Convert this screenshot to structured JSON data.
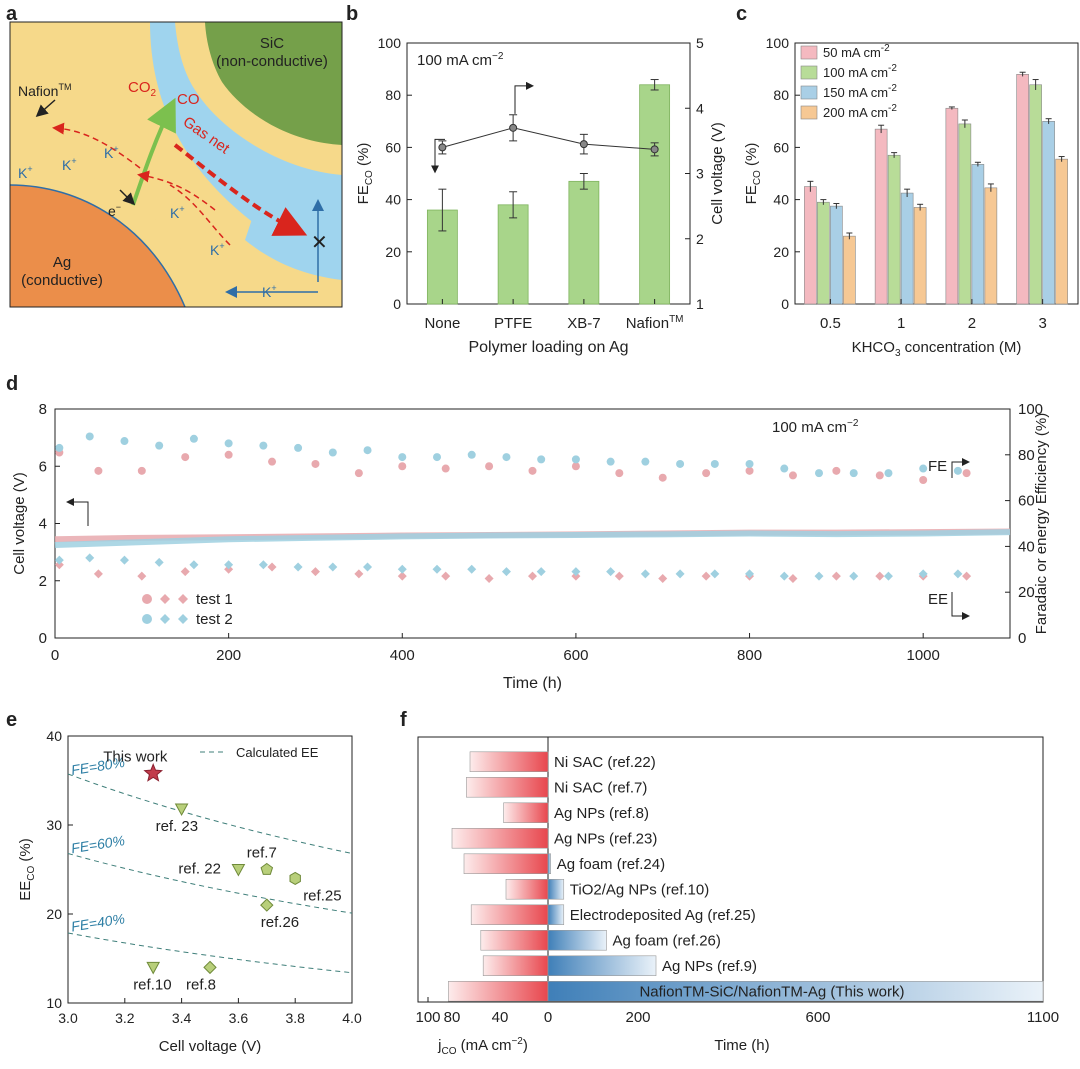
{
  "panel_labels": [
    "a",
    "b",
    "c",
    "d",
    "e",
    "f"
  ],
  "schematic": {
    "sic_label": "SiC",
    "sic_sub": "(non-conductive)",
    "nafion_label": "Nafion",
    "nafion_tm": "TM",
    "ag_label": "Ag",
    "ag_sub": "(conductive)",
    "co2": "CO",
    "co2_sub": "2",
    "co": "CO",
    "gas_net": "Gas net",
    "electron": "e",
    "electron_sup": "−",
    "k_plus": [
      "K",
      "K",
      "K",
      "K",
      "K",
      "K"
    ],
    "k_sup": "+",
    "colors": {
      "sky": "#9fd4ee",
      "nafion": "#f6d98a",
      "ag": "#eb8e4a",
      "sic": "#75a04a",
      "arrow_red": "#d9251d",
      "arrow_green": "#7cc04e",
      "arrow_blue": "#2f6ea7"
    }
  },
  "chart_data": [
    {
      "panel": "b",
      "type": "bar",
      "annotation": "100 mA cm",
      "annotation_sup": "−2",
      "categories": [
        "None",
        "PTFE",
        "XB-7",
        "Nafion"
      ],
      "category_tm": "TM",
      "series": [
        {
          "values": [
            36,
            38,
            47,
            84
          ],
          "errors": [
            8,
            5,
            3,
            2
          ],
          "color": "#a8d58a"
        },
        {
          "values": [
            3.4,
            3.7,
            3.45,
            3.37
          ],
          "errors": [
            0.1,
            0.2,
            0.15,
            0.1
          ],
          "color": "#333333"
        }
      ],
      "xlabel": "Polymer loading on Ag",
      "ylabel_left": "FE",
      "ylabel_left_sub": "CO",
      "ylabel_left_unit": " (%)",
      "ylabel_right": "Cell voltage (V)",
      "ylim_left": [
        0,
        100
      ],
      "ylim_right": [
        1,
        5
      ],
      "yticks_left": [
        "0",
        "20",
        "40",
        "60",
        "80",
        "100"
      ],
      "yticks_right": [
        "1",
        "2",
        "3",
        "4",
        "5"
      ]
    },
    {
      "panel": "c",
      "type": "bar",
      "categories": [
        "0.5",
        "1",
        "2",
        "3"
      ],
      "series": [
        {
          "name": "50 mA cm",
          "values": [
            45,
            67,
            75,
            88
          ],
          "errors": [
            2,
            1.5,
            0.5,
            0.8
          ],
          "color": "#f4b9c0"
        },
        {
          "name": "100 mA cm",
          "values": [
            39,
            57,
            69,
            84
          ],
          "errors": [
            1,
            1,
            1.5,
            2
          ],
          "color": "#b8dc98"
        },
        {
          "name": "150 mA cm",
          "values": [
            37.5,
            42.5,
            53.5,
            70
          ],
          "errors": [
            1,
            1.5,
            0.8,
            1
          ],
          "color": "#a9cfe6"
        },
        {
          "name": "200 mA cm",
          "values": [
            26,
            37,
            44.5,
            55.5
          ],
          "errors": [
            1.2,
            1.2,
            1.5,
            1
          ],
          "color": "#f6c894"
        }
      ],
      "legend_sup": "-2",
      "legend_position": "top-left",
      "xlabel": "KHCO",
      "xlabel_sub": "3",
      "xlabel_unit": " concentration (M)",
      "ylabel": "FE",
      "ylabel_sub": "CO",
      "ylabel_unit": " (%)",
      "ylim": [
        0,
        100
      ],
      "yticks": [
        "0",
        "20",
        "40",
        "60",
        "80",
        "100"
      ]
    },
    {
      "panel": "d",
      "type": "scatter",
      "annotation": "100 mA cm",
      "annotation_sup": "−2",
      "fe_label": "FE",
      "ee_label": "EE",
      "xlabel": "Time (h)",
      "ylabel_left": "Cell voltage (V)",
      "ylabel_right": "Faradaic or energy Efficiency (%)",
      "xlim": [
        0,
        1100
      ],
      "ylim_left": [
        0,
        8
      ],
      "ylim_right": [
        0,
        100
      ],
      "xticks": [
        "0",
        "200",
        "400",
        "600",
        "800",
        "1000"
      ],
      "yticks_left": [
        "0",
        "2",
        "4",
        "6",
        "8"
      ],
      "yticks_right": [
        "0",
        "20",
        "40",
        "60",
        "80",
        "100"
      ],
      "series": [
        {
          "name": "test 1",
          "color": "#e8a9ae",
          "fe": [
            [
              5,
              81
            ],
            [
              50,
              73
            ],
            [
              100,
              73
            ],
            [
              150,
              79
            ],
            [
              200,
              80
            ],
            [
              250,
              77
            ],
            [
              300,
              76
            ],
            [
              350,
              72
            ],
            [
              400,
              75
            ],
            [
              450,
              74
            ],
            [
              500,
              75
            ],
            [
              550,
              73
            ],
            [
              600,
              75
            ],
            [
              650,
              72
            ],
            [
              700,
              70
            ],
            [
              750,
              72
            ],
            [
              800,
              73
            ],
            [
              850,
              71
            ],
            [
              900,
              73
            ],
            [
              950,
              71
            ],
            [
              1000,
              69
            ],
            [
              1050,
              72
            ]
          ],
          "ee": [
            [
              5,
              32
            ],
            [
              50,
              28
            ],
            [
              100,
              27
            ],
            [
              150,
              29
            ],
            [
              200,
              30
            ],
            [
              250,
              31
            ],
            [
              300,
              29
            ],
            [
              350,
              28
            ],
            [
              400,
              27
            ],
            [
              450,
              27
            ],
            [
              500,
              26
            ],
            [
              550,
              27
            ],
            [
              600,
              27
            ],
            [
              650,
              27
            ],
            [
              700,
              26
            ],
            [
              750,
              27
            ],
            [
              800,
              27
            ],
            [
              850,
              26
            ],
            [
              900,
              27
            ],
            [
              950,
              27
            ],
            [
              1000,
              27
            ],
            [
              1050,
              27
            ]
          ],
          "voltage": [
            [
              0,
              3.45
            ],
            [
              100,
              3.5
            ],
            [
              200,
              3.52
            ],
            [
              300,
              3.55
            ],
            [
              400,
              3.58
            ],
            [
              500,
              3.6
            ],
            [
              600,
              3.62
            ],
            [
              700,
              3.65
            ],
            [
              800,
              3.68
            ],
            [
              900,
              3.68
            ],
            [
              1000,
              3.7
            ],
            [
              1100,
              3.72
            ]
          ]
        },
        {
          "name": "test 2",
          "color": "#9fd0e0",
          "fe": [
            [
              5,
              83
            ],
            [
              40,
              88
            ],
            [
              80,
              86
            ],
            [
              120,
              84
            ],
            [
              160,
              87
            ],
            [
              200,
              85
            ],
            [
              240,
              84
            ],
            [
              280,
              83
            ],
            [
              320,
              81
            ],
            [
              360,
              82
            ],
            [
              400,
              79
            ],
            [
              440,
              79
            ],
            [
              480,
              80
            ],
            [
              520,
              79
            ],
            [
              560,
              78
            ],
            [
              600,
              78
            ],
            [
              640,
              77
            ],
            [
              680,
              77
            ],
            [
              720,
              76
            ],
            [
              760,
              76
            ],
            [
              800,
              76
            ],
            [
              840,
              74
            ],
            [
              880,
              72
            ],
            [
              920,
              72
            ],
            [
              960,
              72
            ],
            [
              1000,
              74
            ],
            [
              1040,
              73
            ]
          ],
          "ee": [
            [
              5,
              34
            ],
            [
              40,
              35
            ],
            [
              80,
              34
            ],
            [
              120,
              33
            ],
            [
              160,
              32
            ],
            [
              200,
              32
            ],
            [
              240,
              32
            ],
            [
              280,
              31
            ],
            [
              320,
              31
            ],
            [
              360,
              31
            ],
            [
              400,
              30
            ],
            [
              440,
              30
            ],
            [
              480,
              30
            ],
            [
              520,
              29
            ],
            [
              560,
              29
            ],
            [
              600,
              29
            ],
            [
              640,
              29
            ],
            [
              680,
              28
            ],
            [
              720,
              28
            ],
            [
              760,
              28
            ],
            [
              800,
              28
            ],
            [
              840,
              27
            ],
            [
              880,
              27
            ],
            [
              920,
              27
            ],
            [
              960,
              27
            ],
            [
              1000,
              28
            ],
            [
              1040,
              28
            ]
          ],
          "voltage": [
            [
              0,
              3.25
            ],
            [
              100,
              3.35
            ],
            [
              200,
              3.45
            ],
            [
              300,
              3.5
            ],
            [
              400,
              3.55
            ],
            [
              500,
              3.58
            ],
            [
              600,
              3.6
            ],
            [
              700,
              3.62
            ],
            [
              800,
              3.65
            ],
            [
              900,
              3.63
            ],
            [
              1000,
              3.65
            ],
            [
              1100,
              3.7
            ]
          ]
        }
      ]
    },
    {
      "panel": "e",
      "type": "scatter",
      "legend": "Calculated EE",
      "xlabel": "Cell voltage (V)",
      "ylabel": "EE",
      "ylabel_sub": "CO",
      "ylabel_unit": " (%)",
      "xlim": [
        3.0,
        4.0
      ],
      "ylim": [
        10,
        40
      ],
      "xticks": [
        "3.0",
        "3.2",
        "3.4",
        "3.6",
        "3.8",
        "4.0"
      ],
      "yticks": [
        "10",
        "20",
        "30",
        "40"
      ],
      "curves": [
        {
          "label": "FE=80%",
          "fe": 80
        },
        {
          "label": "FE=60%",
          "fe": 60
        },
        {
          "label": "FE=40%",
          "fe": 40
        }
      ],
      "points": [
        {
          "label": "This work",
          "x": 3.3,
          "y": 35.8,
          "marker": "star",
          "color": "#c23b4b"
        },
        {
          "label": "ref. 23",
          "x": 3.4,
          "y": 31.8,
          "marker": "tri",
          "color": "#b8cf7a"
        },
        {
          "label": "ref. 22",
          "x": 3.6,
          "y": 25,
          "marker": "tri",
          "color": "#b8cf7a"
        },
        {
          "label": "ref.7",
          "x": 3.7,
          "y": 25,
          "marker": "penta",
          "color": "#b8cf7a"
        },
        {
          "label": "ref.25",
          "x": 3.8,
          "y": 24,
          "marker": "hex",
          "color": "#b8cf7a"
        },
        {
          "label": "ref.26",
          "x": 3.7,
          "y": 21,
          "marker": "diamond",
          "color": "#b8cf7a"
        },
        {
          "label": "ref.10",
          "x": 3.3,
          "y": 14,
          "marker": "tri",
          "color": "#b8cf7a"
        },
        {
          "label": "ref.8",
          "x": 3.5,
          "y": 14,
          "marker": "diamond",
          "color": "#b8cf7a"
        }
      ]
    },
    {
      "panel": "f",
      "type": "bar",
      "rows": [
        {
          "label": "Ni SAC (ref.22)",
          "j": 65,
          "time": 0
        },
        {
          "label": "Ni SAC (ref.7)",
          "j": 68,
          "time": 0
        },
        {
          "label": "Ag NPs  (ref.8)",
          "j": 37,
          "time": 0
        },
        {
          "label": "Ag NPs  (ref.23)",
          "j": 80,
          "time": 0
        },
        {
          "label": "Ag foam (ref.24)",
          "j": 70,
          "time": 6
        },
        {
          "label": "TiO2/Ag NPs (ref.10)",
          "j": 35,
          "time": 35
        },
        {
          "label": "Electrodeposited Ag (ref.25)",
          "j": 64,
          "time": 35
        },
        {
          "label": "Ag foam (ref.26)",
          "j": 56,
          "time": 130
        },
        {
          "label": "Ag NPs  (ref.9)",
          "j": 54,
          "time": 240
        },
        {
          "label": "NafionTM-SiC/NafionTM-Ag (This work)",
          "j": 83,
          "time": 1100
        }
      ],
      "j_ticks": [
        "100",
        "80",
        "40",
        "0"
      ],
      "time_ticks": [
        "200",
        "600",
        "1100"
      ],
      "xlabel_left": "j",
      "xlabel_left_sub": "CO",
      "xlabel_left_unit": " (mA cm",
      "xlabel_left_sup": "−2",
      "xlabel_right": "Time (h)",
      "jlim": [
        0,
        100
      ],
      "tlim": [
        0,
        1100
      ]
    }
  ]
}
